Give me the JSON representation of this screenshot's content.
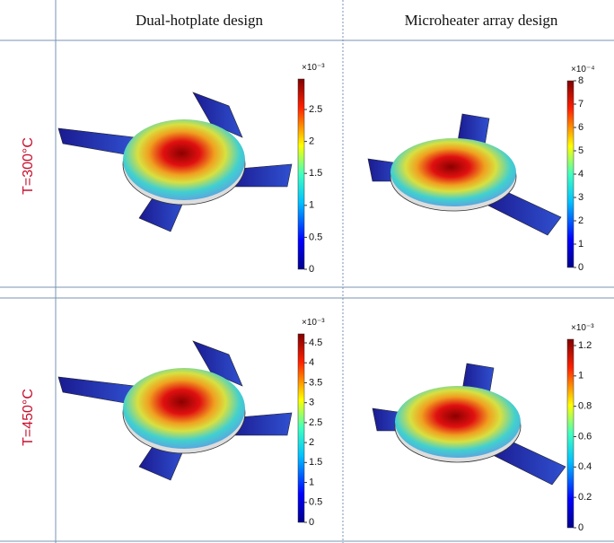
{
  "header": {
    "columns": [
      "Dual-hotplate design",
      "Microheater array design"
    ]
  },
  "rows": [
    {
      "label": "T=300°C",
      "panels": [
        {
          "multiplier": "×10⁻³",
          "ticks": [
            "0",
            "0.5",
            "1",
            "1.5",
            "2",
            "2.5"
          ]
        },
        {
          "multiplier": "×10⁻⁴",
          "ticks": [
            "0",
            "1",
            "2",
            "3",
            "4",
            "5",
            "6",
            "7",
            "8"
          ]
        }
      ]
    },
    {
      "label": "T=450°C",
      "panels": [
        {
          "multiplier": "×10⁻³",
          "ticks": [
            "0",
            "0.5",
            "1",
            "1.5",
            "2",
            "2.5",
            "3",
            "3.5",
            "4",
            "4.5"
          ]
        },
        {
          "multiplier": "×10⁻³",
          "ticks": [
            "0",
            "0.2",
            "0.4",
            "0.6",
            "0.8",
            "1",
            "1.2"
          ]
        }
      ]
    }
  ]
}
